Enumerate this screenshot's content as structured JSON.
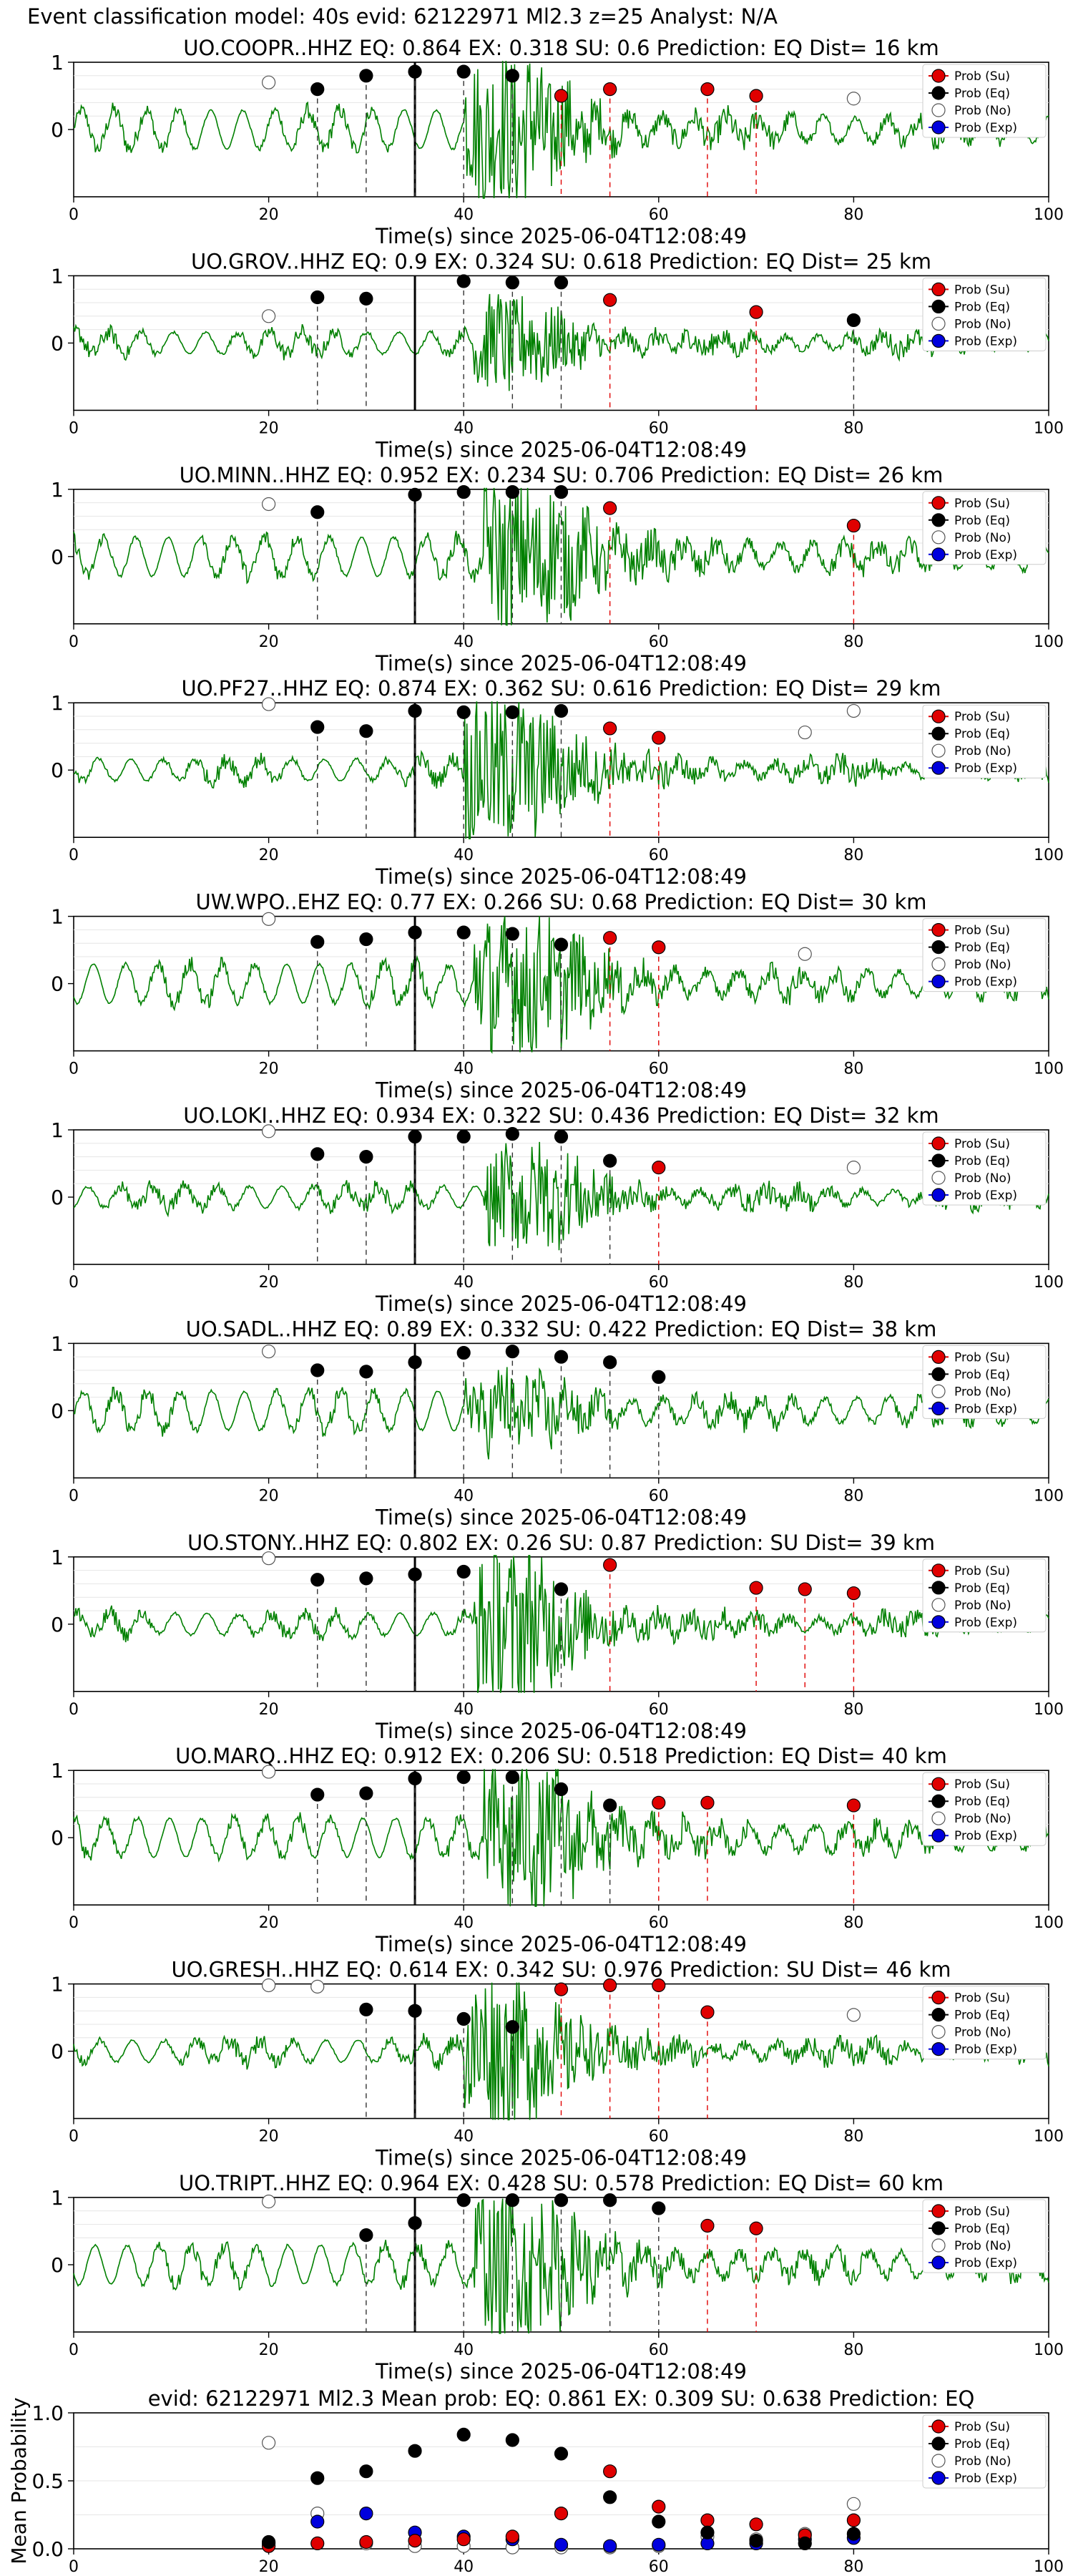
{
  "suptitle": "Event classification model: 40s evid: 62122971 Ml2.3 z=25 Analyst: N/A",
  "legend_labels": [
    "Prob (Su)",
    "Prob (Eq)",
    "Prob (No)",
    "Prob (Exp)"
  ],
  "colors": {
    "su": "#e00000",
    "eq": "#000000",
    "no": "#ffffff",
    "exp": "#0000dd",
    "waveform": "#008000"
  },
  "chart_data": [
    {
      "type": "scatter",
      "station": "UO.COOPR..HHZ",
      "title": "UO.COOPR..HHZ   EQ: 0.864  EX: 0.318   SU: 0.6   Prediction: EQ    Dist= 16 km",
      "xlabel": "Time(s) since 2025-06-04T12:08:49",
      "xlim": [
        0,
        100
      ],
      "ylim": [
        -1,
        1
      ],
      "xticks": [
        0,
        20,
        40,
        60,
        80,
        100
      ],
      "yticks": [
        0,
        1
      ],
      "arrival_line": 35,
      "waveform_amplitude": 1.0,
      "series": [
        {
          "name": "Prob (No)",
          "x": [
            20,
            80
          ],
          "y": [
            0.7,
            0.46
          ]
        },
        {
          "name": "Prob (Eq)",
          "x": [
            25,
            30,
            35,
            40,
            45
          ],
          "y": [
            0.6,
            0.8,
            0.86,
            0.86,
            0.8
          ]
        },
        {
          "name": "Prob (Su)",
          "x": [
            50,
            55,
            65,
            70
          ],
          "y": [
            0.5,
            0.6,
            0.6,
            0.5
          ]
        }
      ]
    },
    {
      "type": "scatter",
      "station": "UO.GROV..HHZ",
      "title": "UO.GROV..HHZ   EQ: 0.9   EX: 0.324   SU: 0.618   Prediction: EQ    Dist= 25 km",
      "xlabel": "Time(s) since 2025-06-04T12:08:49",
      "xlim": [
        0,
        100
      ],
      "ylim": [
        -1,
        1
      ],
      "xticks": [
        0,
        20,
        40,
        60,
        80,
        100
      ],
      "yticks": [
        0,
        1
      ],
      "arrival_line": 35,
      "waveform_amplitude": 0.55,
      "series": [
        {
          "name": "Prob (No)",
          "x": [
            20
          ],
          "y": [
            0.4
          ]
        },
        {
          "name": "Prob (Eq)",
          "x": [
            25,
            30,
            40,
            45,
            50,
            80
          ],
          "y": [
            0.68,
            0.66,
            0.92,
            0.9,
            0.9,
            0.34
          ]
        },
        {
          "name": "Prob (Su)",
          "x": [
            55,
            70
          ],
          "y": [
            0.64,
            0.46
          ]
        }
      ]
    },
    {
      "type": "scatter",
      "station": "UO.MINN..HHZ",
      "title": "UO.MINN..HHZ   EQ: 0.952  EX: 0.234  SU: 0.706   Prediction: EQ    Dist= 26 km",
      "xlabel": "Time(s) since 2025-06-04T12:08:49",
      "xlim": [
        0,
        100
      ],
      "ylim": [
        -1,
        1
      ],
      "xticks": [
        0,
        20,
        40,
        60,
        80,
        100
      ],
      "yticks": [
        0,
        1
      ],
      "arrival_line": 35,
      "waveform_amplitude": 1.0,
      "series": [
        {
          "name": "Prob (No)",
          "x": [
            20
          ],
          "y": [
            0.78
          ]
        },
        {
          "name": "Prob (Eq)",
          "x": [
            25,
            35,
            40,
            45,
            50
          ],
          "y": [
            0.66,
            0.92,
            0.96,
            0.96,
            0.96
          ]
        },
        {
          "name": "Prob (Su)",
          "x": [
            55,
            80
          ],
          "y": [
            0.72,
            0.46
          ]
        }
      ]
    },
    {
      "type": "scatter",
      "station": "UO.PF27..HHZ",
      "title": "UO.PF27..HHZ   EQ: 0.874  EX: 0.362  SU: 0.616   Prediction: EQ    Dist= 29 km",
      "xlabel": "Time(s) since 2025-06-04T12:08:49",
      "xlim": [
        0,
        100
      ],
      "ylim": [
        -1,
        1
      ],
      "xticks": [
        0,
        20,
        40,
        60,
        80,
        100
      ],
      "yticks": [
        0,
        1
      ],
      "arrival_line": 35,
      "waveform_amplitude": 1.0,
      "series": [
        {
          "name": "Prob (No)",
          "x": [
            20,
            75,
            80
          ],
          "y": [
            0.98,
            0.56,
            0.88
          ]
        },
        {
          "name": "Prob (Eq)",
          "x": [
            25,
            30,
            35,
            40,
            45,
            50
          ],
          "y": [
            0.64,
            0.58,
            0.88,
            0.86,
            0.86,
            0.88
          ]
        },
        {
          "name": "Prob (Su)",
          "x": [
            55,
            60
          ],
          "y": [
            0.62,
            0.48
          ]
        }
      ]
    },
    {
      "type": "scatter",
      "station": "UW.WPO..EHZ",
      "title": "UW.WPO..EHZ   EQ: 0.77  EX: 0.266  SU: 0.68   Prediction: EQ    Dist= 30 km",
      "xlabel": "Time(s) since 2025-06-04T12:08:49",
      "xlim": [
        0,
        100
      ],
      "ylim": [
        -1,
        1
      ],
      "xticks": [
        0,
        20,
        40,
        60,
        80,
        100
      ],
      "yticks": [
        0,
        1
      ],
      "arrival_line": 35,
      "waveform_amplitude": 0.95,
      "series": [
        {
          "name": "Prob (No)",
          "x": [
            20,
            75
          ],
          "y": [
            0.96,
            0.44
          ]
        },
        {
          "name": "Prob (Eq)",
          "x": [
            25,
            30,
            35,
            40,
            45,
            50
          ],
          "y": [
            0.62,
            0.66,
            0.76,
            0.76,
            0.74,
            0.58
          ]
        },
        {
          "name": "Prob (Su)",
          "x": [
            55,
            60
          ],
          "y": [
            0.68,
            0.54
          ]
        }
      ]
    },
    {
      "type": "scatter",
      "station": "UO.LOKI..HHZ",
      "title": "UO.LOKI..HHZ   EQ: 0.934  EX: 0.322  SU: 0.436   Prediction: EQ    Dist= 32 km",
      "xlabel": "Time(s) since 2025-06-04T12:08:49",
      "xlim": [
        0,
        100
      ],
      "ylim": [
        -1,
        1
      ],
      "xticks": [
        0,
        20,
        40,
        60,
        80,
        100
      ],
      "yticks": [
        0,
        1
      ],
      "arrival_line": 35,
      "waveform_amplitude": 0.65,
      "series": [
        {
          "name": "Prob (No)",
          "x": [
            20,
            80
          ],
          "y": [
            0.98,
            0.44
          ]
        },
        {
          "name": "Prob (Eq)",
          "x": [
            25,
            30,
            35,
            40,
            45,
            50,
            55
          ],
          "y": [
            0.64,
            0.6,
            0.9,
            0.9,
            0.94,
            0.9,
            0.54
          ]
        },
        {
          "name": "Prob (Su)",
          "x": [
            60
          ],
          "y": [
            0.44
          ]
        }
      ]
    },
    {
      "type": "scatter",
      "station": "UO.SADL..HHZ",
      "title": "UO.SADL..HHZ   EQ: 0.89  EX: 0.332  SU: 0.422   Prediction: EQ    Dist= 38 km",
      "xlabel": "Time(s) since 2025-06-04T12:08:49",
      "xlim": [
        0,
        100
      ],
      "ylim": [
        -1,
        1
      ],
      "xticks": [
        0,
        20,
        40,
        60,
        80,
        100
      ],
      "yticks": [
        0,
        1
      ],
      "arrival_line": 35,
      "waveform_amplitude": 0.45,
      "series": [
        {
          "name": "Prob (No)",
          "x": [
            20
          ],
          "y": [
            0.88
          ]
        },
        {
          "name": "Prob (Eq)",
          "x": [
            25,
            30,
            35,
            40,
            45,
            50,
            55,
            60
          ],
          "y": [
            0.6,
            0.58,
            0.72,
            0.86,
            0.88,
            0.8,
            0.72,
            0.5
          ]
        }
      ]
    },
    {
      "type": "scatter",
      "station": "UO.STONY..HHZ",
      "title": "UO.STONY..HHZ   EQ: 0.802  EX: 0.26  SU: 0.87   Prediction: SU    Dist= 39 km",
      "xlabel": "Time(s) since 2025-06-04T12:08:49",
      "xlim": [
        0,
        100
      ],
      "ylim": [
        -1,
        1
      ],
      "xticks": [
        0,
        20,
        40,
        60,
        80,
        100
      ],
      "yticks": [
        0,
        1
      ],
      "arrival_line": 35,
      "waveform_amplitude": 1.0,
      "series": [
        {
          "name": "Prob (No)",
          "x": [
            20
          ],
          "y": [
            0.98
          ]
        },
        {
          "name": "Prob (Eq)",
          "x": [
            25,
            30,
            35,
            40,
            50
          ],
          "y": [
            0.66,
            0.68,
            0.74,
            0.78,
            0.52
          ]
        },
        {
          "name": "Prob (Su)",
          "x": [
            55,
            70,
            75,
            80
          ],
          "y": [
            0.88,
            0.54,
            0.52,
            0.46
          ]
        }
      ]
    },
    {
      "type": "scatter",
      "station": "UO.MARQ..HHZ",
      "title": "UO.MARQ..HHZ   EQ: 0.912  EX: 0.206  SU: 0.518   Prediction: EQ    Dist= 40 km",
      "xlabel": "Time(s) since 2025-06-04T12:08:49",
      "xlim": [
        0,
        100
      ],
      "ylim": [
        -1,
        1
      ],
      "xticks": [
        0,
        20,
        40,
        60,
        80,
        100
      ],
      "yticks": [
        0,
        1
      ],
      "arrival_line": 35,
      "waveform_amplitude": 1.0,
      "series": [
        {
          "name": "Prob (No)",
          "x": [
            20
          ],
          "y": [
            0.98
          ]
        },
        {
          "name": "Prob (Eq)",
          "x": [
            25,
            30,
            35,
            40,
            45,
            50,
            55
          ],
          "y": [
            0.64,
            0.66,
            0.88,
            0.9,
            0.9,
            0.72,
            0.48
          ]
        },
        {
          "name": "Prob (Su)",
          "x": [
            60,
            65,
            80
          ],
          "y": [
            0.52,
            0.52,
            0.48
          ]
        }
      ]
    },
    {
      "type": "scatter",
      "station": "UO.GRESH..HHZ",
      "title": "UO.GRESH..HHZ   EQ: 0.614  EX: 0.342  SU: 0.976   Prediction: SU    Dist= 46 km",
      "xlabel": "Time(s) since 2025-06-04T12:08:49",
      "xlim": [
        0,
        100
      ],
      "ylim": [
        -1,
        1
      ],
      "xticks": [
        0,
        20,
        40,
        60,
        80,
        100
      ],
      "yticks": [
        0,
        1
      ],
      "arrival_line": 35,
      "waveform_amplitude": 1.0,
      "series": [
        {
          "name": "Prob (No)",
          "x": [
            20,
            25,
            80
          ],
          "y": [
            0.98,
            0.96,
            0.54
          ]
        },
        {
          "name": "Prob (Eq)",
          "x": [
            30,
            35,
            40,
            45
          ],
          "y": [
            0.62,
            0.6,
            0.48,
            0.36
          ]
        },
        {
          "name": "Prob (Su)",
          "x": [
            50,
            55,
            60,
            65
          ],
          "y": [
            0.92,
            0.98,
            0.98,
            0.58
          ]
        }
      ]
    },
    {
      "type": "scatter",
      "station": "UO.TRIPT..HHZ",
      "title": "UO.TRIPT..HHZ   EQ: 0.964  EX: 0.428  SU: 0.578   Prediction: EQ    Dist= 60 km",
      "xlabel": "Time(s) since 2025-06-04T12:08:49",
      "xlim": [
        0,
        100
      ],
      "ylim": [
        -1,
        1
      ],
      "xticks": [
        0,
        20,
        40,
        60,
        80,
        100
      ],
      "yticks": [
        0,
        1
      ],
      "arrival_line": 35,
      "waveform_amplitude": 1.0,
      "series": [
        {
          "name": "Prob (No)",
          "x": [
            20
          ],
          "y": [
            0.94
          ]
        },
        {
          "name": "Prob (Eq)",
          "x": [
            30,
            35,
            40,
            45,
            50,
            55,
            60
          ],
          "y": [
            0.44,
            0.62,
            0.96,
            0.96,
            0.96,
            0.96,
            0.84
          ]
        },
        {
          "name": "Prob (Su)",
          "x": [
            65,
            70
          ],
          "y": [
            0.58,
            0.54
          ]
        }
      ]
    },
    {
      "type": "scatter",
      "title": "evid: 62122971  Ml2.3   Mean prob:   EQ: 0.861  EX: 0.309  SU: 0.638   Prediction: EQ",
      "ylabel": "Mean Probability",
      "xlim": [
        0,
        100
      ],
      "ylim": [
        0,
        1
      ],
      "xticks": [
        0,
        20,
        40,
        60,
        80,
        100
      ],
      "yticks": [
        0.0,
        0.5,
        1.0
      ],
      "series": [
        {
          "name": "Prob (No)",
          "x": [
            20,
            25,
            30,
            35,
            40,
            45,
            50,
            55,
            60,
            65,
            70,
            75,
            80
          ],
          "y": [
            0.78,
            0.26,
            0.04,
            0.02,
            0.02,
            0.01,
            0.01,
            0.01,
            0.02,
            0.09,
            0.07,
            0.11,
            0.33
          ]
        },
        {
          "name": "Prob (Exp)",
          "x": [
            20,
            25,
            30,
            35,
            40,
            45,
            50,
            55,
            60,
            65,
            70,
            75,
            80
          ],
          "y": [
            0.04,
            0.2,
            0.26,
            0.12,
            0.09,
            0.07,
            0.03,
            0.02,
            0.03,
            0.04,
            0.04,
            0.07,
            0.08
          ]
        },
        {
          "name": "Prob (Su)",
          "x": [
            20,
            25,
            30,
            35,
            40,
            45,
            50,
            55,
            60,
            65,
            70,
            75,
            80
          ],
          "y": [
            0.02,
            0.04,
            0.05,
            0.06,
            0.07,
            0.09,
            0.26,
            0.57,
            0.31,
            0.21,
            0.18,
            0.1,
            0.21
          ]
        },
        {
          "name": "Prob (Eq)",
          "x": [
            20,
            25,
            30,
            35,
            40,
            45,
            50,
            55,
            60,
            65,
            70,
            75,
            80
          ],
          "y": [
            0.05,
            0.52,
            0.57,
            0.72,
            0.84,
            0.8,
            0.7,
            0.38,
            0.2,
            0.12,
            0.06,
            0.04,
            0.11
          ]
        }
      ]
    }
  ]
}
